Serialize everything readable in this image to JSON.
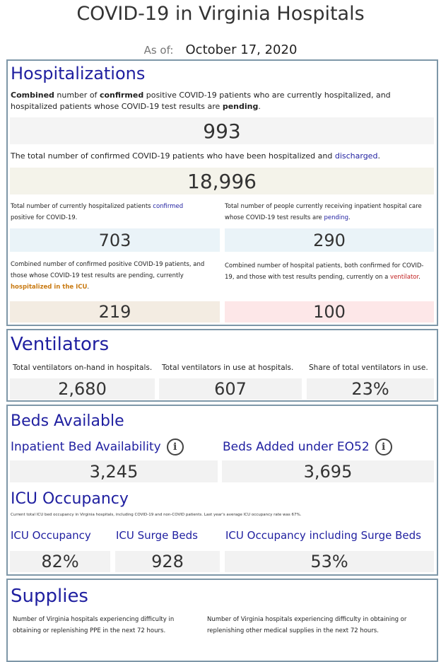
{
  "header": {
    "title": "COVID-19 in Virginia Hospitals",
    "as_of_label": "As of:",
    "as_of_date": "October 17, 2020"
  },
  "hospitalizations": {
    "heading": "Hospitalizations",
    "combined_desc": {
      "part1": "Combined",
      "part2": " number of ",
      "part3": "confirmed",
      "part4": " positive COVID-19 patients who are currently hospitalized, and hospitalized patients whose COVID-19 test results are ",
      "part5": "pending",
      "part6": "."
    },
    "combined_value": "993",
    "discharged_desc": {
      "part1": "The total number of confirmed COVID-19 patients who have been hospitalized and ",
      "part2": "discharged",
      "part3": "."
    },
    "discharged_value": "18,996",
    "confirmed_desc": {
      "part1": "Total number of currently hospitalized patients ",
      "part2": "confirmed",
      "part3": " positive for COVID-19."
    },
    "confirmed_value": "703",
    "pending_desc": {
      "part1": "Total number of people currently receiving inpatient hospital care whose COVID-19 test results are ",
      "part2": "pending",
      "part3": "."
    },
    "pending_value": "290",
    "icu_desc": {
      "part1": "Combined number of confirmed positive COVID-19 patients, and those whose COVID-19 test results are pending, currently ",
      "part2": "hospitalized in the ICU",
      "part3": "."
    },
    "icu_value": "219",
    "vent_desc": {
      "part1": "Combined number of hospital patients, both confirmed for COVID-19, and those with test results pending, currently on a ",
      "part2": "ventilator",
      "part3": "."
    },
    "vent_value": "100"
  },
  "ventilators": {
    "heading": "Ventilators",
    "onhand_label": "Total ventilators on-hand in hospitals.",
    "onhand_value": "2,680",
    "inuse_label": "Total ventilators in use at hospitals.",
    "inuse_value": "607",
    "share_label": "Share of total ventilators in use.",
    "share_value": "23%"
  },
  "beds": {
    "heading": "Beds Available",
    "inpatient_label": "Inpatient Bed Availability",
    "inpatient_value": "3,245",
    "eo52_label": "Beds Added under EO52",
    "eo52_value": "3,695",
    "icu_heading": "ICU Occupancy",
    "icu_note": "Current total ICU bed occupancy in Virginia hospitals, including COVID-19 and non-COVID patients. Last year's average ICU occupancy rate was 67%.",
    "icu_occ_label": "ICU Occupancy",
    "icu_occ_value": "82%",
    "surge_label": "ICU Surge Beds",
    "surge_value": "928",
    "icu_incl_label": "ICU Occupancy including Surge Beds",
    "icu_incl_value": "53%",
    "info_glyph": "i"
  },
  "supplies": {
    "heading": "Supplies",
    "ppe_desc": "Number of Virginia hospitals experiencing difficulty in obtaining or replenishing PPE in the next 72 hours.",
    "other_desc": "Number of Virginia hospitals experiencing difficulty in obtaining or replenishing other medical supplies in the next 72 hours."
  },
  "icons": {
    "info": "info-circle-icon"
  }
}
